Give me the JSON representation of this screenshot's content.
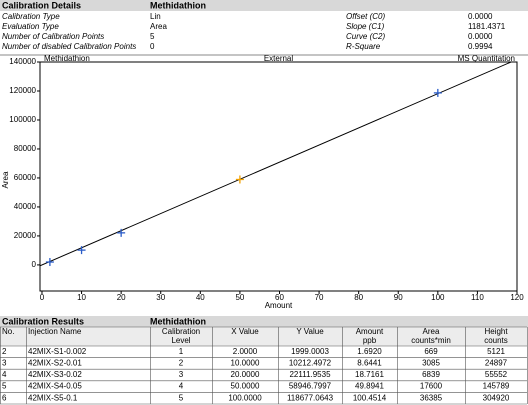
{
  "details": {
    "title": "Calibration Details",
    "compound": "Methidathion",
    "rows": [
      [
        "Calibration Type",
        "Lin",
        "Offset (C0)",
        "0.0000"
      ],
      [
        "Evaluation Type",
        "Area",
        "Slope (C1)",
        "1181.4371"
      ],
      [
        "Number of Calibration Points",
        "5",
        "Curve (C2)",
        "0.0000"
      ],
      [
        "Number of disabled Calibration Points",
        "0",
        "R-Square",
        "0.9994"
      ]
    ]
  },
  "chart_data": {
    "type": "scatter",
    "title": "Methidathion",
    "subtitle": "External",
    "corner_label": "MS Quantitation",
    "x_label": "Amount",
    "y_label": "Area",
    "x": [
      2,
      10,
      20,
      50,
      100
    ],
    "values": [
      1999.0003,
      10212.4972,
      22111.9535,
      58946.7997,
      118677.0643
    ],
    "marker_colors": [
      "#2a5cc8",
      "#2a5cc8",
      "#2a5cc8",
      "#f0a000",
      "#2a5cc8"
    ],
    "xlim": [
      -0.5,
      120
    ],
    "ylim": [
      -18000,
      140000
    ],
    "xticks": [
      0,
      10,
      20,
      30,
      40,
      50,
      60,
      70,
      80,
      90,
      100,
      110,
      120
    ],
    "yticks": [
      0,
      20000,
      40000,
      60000,
      80000,
      100000,
      120000,
      140000
    ]
  },
  "results": {
    "title": "Calibration Results",
    "compound": "Methidathion",
    "header": [
      [
        "No."
      ],
      [
        "Injection Name"
      ],
      [
        "Calibration",
        "Level"
      ],
      [
        "X Value"
      ],
      [
        "Y Value"
      ],
      [
        "Amount",
        "ppb"
      ],
      [
        "Area",
        "counts*min"
      ],
      [
        "Height",
        "counts"
      ]
    ],
    "rows": [
      [
        "2",
        "42MIX-S1-0.002",
        "1",
        "2.0000",
        "1999.0003",
        "1.6920",
        "669",
        "5121"
      ],
      [
        "3",
        "42MIX-S2-0.01",
        "2",
        "10.0000",
        "10212.4972",
        "8.6441",
        "3085",
        "24897"
      ],
      [
        "4",
        "42MIX-S3-0.02",
        "3",
        "20.0000",
        "22111.9535",
        "18.7161",
        "6839",
        "55552"
      ],
      [
        "5",
        "42MIX-S4-0.05",
        "4",
        "50.0000",
        "58946.7997",
        "49.8941",
        "17600",
        "145789"
      ],
      [
        "6",
        "42MIX-S5-0.1",
        "5",
        "100.0000",
        "118677.0643",
        "100.4514",
        "36385",
        "304920"
      ]
    ]
  }
}
